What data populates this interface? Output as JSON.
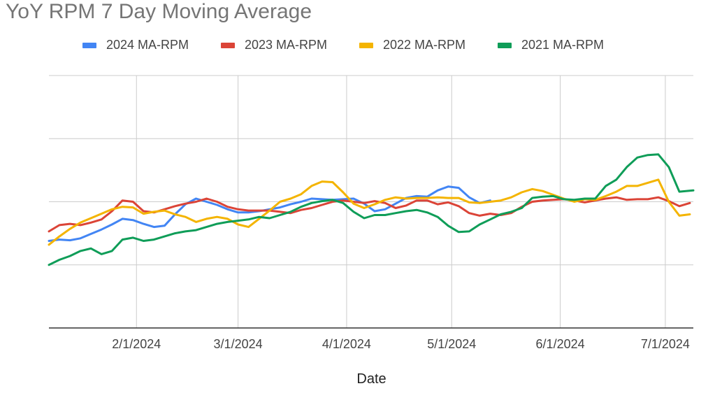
{
  "chart_data": {
    "type": "line",
    "title": "YoY RPM 7 Day Moving Average",
    "xlabel": "Date",
    "ylabel": "",
    "xlim": [
      "2024-01-07",
      "2024-07-09"
    ],
    "ylim": [
      0,
      4
    ],
    "yticks_labeled": false,
    "grid": true,
    "legend_position": "top",
    "x_ticks": [
      "2/1/2024",
      "3/1/2024",
      "4/1/2024",
      "5/1/2024",
      "6/1/2024",
      "7/1/2024"
    ],
    "series": [
      {
        "name": "2024 MA-RPM",
        "color": "#4285F4",
        "points": [
          [
            "2024-01-07",
            1.38
          ],
          [
            "2024-01-10",
            1.4
          ],
          [
            "2024-01-13",
            1.39
          ],
          [
            "2024-01-16",
            1.42
          ],
          [
            "2024-01-19",
            1.49
          ],
          [
            "2024-01-22",
            1.56
          ],
          [
            "2024-01-25",
            1.64
          ],
          [
            "2024-01-28",
            1.73
          ],
          [
            "2024-01-31",
            1.71
          ],
          [
            "2024-02-03",
            1.65
          ],
          [
            "2024-02-06",
            1.6
          ],
          [
            "2024-02-09",
            1.62
          ],
          [
            "2024-02-12",
            1.8
          ],
          [
            "2024-02-15",
            1.96
          ],
          [
            "2024-02-18",
            2.05
          ],
          [
            "2024-02-21",
            2.0
          ],
          [
            "2024-02-24",
            1.95
          ],
          [
            "2024-02-27",
            1.88
          ],
          [
            "2024-03-01",
            1.83
          ],
          [
            "2024-03-04",
            1.83
          ],
          [
            "2024-03-07",
            1.85
          ],
          [
            "2024-03-10",
            1.88
          ],
          [
            "2024-03-13",
            1.91
          ],
          [
            "2024-03-16",
            1.96
          ],
          [
            "2024-03-19",
            2.0
          ],
          [
            "2024-03-22",
            2.05
          ],
          [
            "2024-03-25",
            2.04
          ],
          [
            "2024-03-28",
            2.03
          ],
          [
            "2024-03-31",
            2.04
          ],
          [
            "2024-04-03",
            2.05
          ],
          [
            "2024-04-06",
            1.97
          ],
          [
            "2024-04-09",
            1.85
          ],
          [
            "2024-04-12",
            1.88
          ],
          [
            "2024-04-15",
            1.97
          ],
          [
            "2024-04-18",
            2.06
          ],
          [
            "2024-04-21",
            2.09
          ],
          [
            "2024-04-24",
            2.08
          ],
          [
            "2024-04-27",
            2.18
          ],
          [
            "2024-04-30",
            2.24
          ],
          [
            "2024-05-03",
            2.22
          ],
          [
            "2024-05-06",
            2.07
          ],
          [
            "2024-05-09",
            1.98
          ],
          [
            "2024-05-12",
            2.02
          ]
        ]
      },
      {
        "name": "2023 MA-RPM",
        "color": "#DB4437",
        "points": [
          [
            "2024-01-07",
            1.53
          ],
          [
            "2024-01-10",
            1.63
          ],
          [
            "2024-01-13",
            1.65
          ],
          [
            "2024-01-16",
            1.63
          ],
          [
            "2024-01-19",
            1.67
          ],
          [
            "2024-01-22",
            1.72
          ],
          [
            "2024-01-25",
            1.85
          ],
          [
            "2024-01-28",
            2.02
          ],
          [
            "2024-01-31",
            2.0
          ],
          [
            "2024-02-03",
            1.85
          ],
          [
            "2024-02-06",
            1.83
          ],
          [
            "2024-02-09",
            1.88
          ],
          [
            "2024-02-12",
            1.93
          ],
          [
            "2024-02-15",
            1.97
          ],
          [
            "2024-02-18",
            2.0
          ],
          [
            "2024-02-21",
            2.05
          ],
          [
            "2024-02-24",
            2.0
          ],
          [
            "2024-02-27",
            1.92
          ],
          [
            "2024-03-01",
            1.88
          ],
          [
            "2024-03-04",
            1.86
          ],
          [
            "2024-03-07",
            1.86
          ],
          [
            "2024-03-10",
            1.86
          ],
          [
            "2024-03-13",
            1.84
          ],
          [
            "2024-03-16",
            1.82
          ],
          [
            "2024-03-19",
            1.87
          ],
          [
            "2024-03-22",
            1.9
          ],
          [
            "2024-03-25",
            1.95
          ],
          [
            "2024-03-28",
            2.0
          ],
          [
            "2024-03-31",
            2.02
          ],
          [
            "2024-04-03",
            2.0
          ],
          [
            "2024-04-06",
            1.98
          ],
          [
            "2024-04-09",
            2.01
          ],
          [
            "2024-04-12",
            1.98
          ],
          [
            "2024-04-15",
            1.9
          ],
          [
            "2024-04-18",
            1.94
          ],
          [
            "2024-04-21",
            2.02
          ],
          [
            "2024-04-24",
            2.02
          ],
          [
            "2024-04-27",
            1.96
          ],
          [
            "2024-04-30",
            1.99
          ],
          [
            "2024-05-03",
            1.93
          ],
          [
            "2024-05-06",
            1.82
          ],
          [
            "2024-05-09",
            1.78
          ],
          [
            "2024-05-12",
            1.81
          ],
          [
            "2024-05-15",
            1.79
          ],
          [
            "2024-05-18",
            1.82
          ],
          [
            "2024-05-21",
            1.92
          ],
          [
            "2024-05-24",
            2.0
          ],
          [
            "2024-05-27",
            2.02
          ],
          [
            "2024-05-30",
            2.03
          ],
          [
            "2024-06-02",
            2.04
          ],
          [
            "2024-06-05",
            2.02
          ],
          [
            "2024-06-08",
            1.99
          ],
          [
            "2024-06-11",
            2.02
          ],
          [
            "2024-06-14",
            2.05
          ],
          [
            "2024-06-17",
            2.07
          ],
          [
            "2024-06-20",
            2.03
          ],
          [
            "2024-06-23",
            2.04
          ],
          [
            "2024-06-26",
            2.04
          ],
          [
            "2024-06-29",
            2.07
          ],
          [
            "2024-07-02",
            2.01
          ],
          [
            "2024-07-05",
            1.93
          ],
          [
            "2024-07-08",
            1.98
          ]
        ]
      },
      {
        "name": "2022 MA-RPM",
        "color": "#F4B400",
        "points": [
          [
            "2024-01-07",
            1.32
          ],
          [
            "2024-01-10",
            1.45
          ],
          [
            "2024-01-13",
            1.57
          ],
          [
            "2024-01-16",
            1.67
          ],
          [
            "2024-01-19",
            1.74
          ],
          [
            "2024-01-22",
            1.81
          ],
          [
            "2024-01-25",
            1.88
          ],
          [
            "2024-01-28",
            1.92
          ],
          [
            "2024-01-31",
            1.91
          ],
          [
            "2024-02-03",
            1.81
          ],
          [
            "2024-02-06",
            1.84
          ],
          [
            "2024-02-09",
            1.86
          ],
          [
            "2024-02-12",
            1.8
          ],
          [
            "2024-02-15",
            1.76
          ],
          [
            "2024-02-18",
            1.68
          ],
          [
            "2024-02-21",
            1.73
          ],
          [
            "2024-02-24",
            1.76
          ],
          [
            "2024-02-27",
            1.73
          ],
          [
            "2024-03-01",
            1.64
          ],
          [
            "2024-03-04",
            1.6
          ],
          [
            "2024-03-07",
            1.73
          ],
          [
            "2024-03-10",
            1.86
          ],
          [
            "2024-03-13",
            2.0
          ],
          [
            "2024-03-16",
            2.05
          ],
          [
            "2024-03-19",
            2.12
          ],
          [
            "2024-03-22",
            2.25
          ],
          [
            "2024-03-25",
            2.32
          ],
          [
            "2024-03-28",
            2.31
          ],
          [
            "2024-03-31",
            2.15
          ],
          [
            "2024-04-03",
            1.97
          ],
          [
            "2024-04-06",
            1.9
          ],
          [
            "2024-04-09",
            1.96
          ],
          [
            "2024-04-12",
            2.03
          ],
          [
            "2024-04-15",
            2.07
          ],
          [
            "2024-04-18",
            2.05
          ],
          [
            "2024-04-21",
            2.06
          ],
          [
            "2024-04-24",
            2.06
          ],
          [
            "2024-04-27",
            2.07
          ],
          [
            "2024-04-30",
            2.06
          ],
          [
            "2024-05-03",
            2.06
          ],
          [
            "2024-05-06",
            1.99
          ],
          [
            "2024-05-09",
            1.98
          ],
          [
            "2024-05-12",
            2.0
          ],
          [
            "2024-05-15",
            2.02
          ],
          [
            "2024-05-18",
            2.07
          ],
          [
            "2024-05-21",
            2.15
          ],
          [
            "2024-05-24",
            2.2
          ],
          [
            "2024-05-27",
            2.17
          ],
          [
            "2024-05-30",
            2.11
          ],
          [
            "2024-06-02",
            2.05
          ],
          [
            "2024-06-05",
            2.0
          ],
          [
            "2024-06-08",
            2.04
          ],
          [
            "2024-06-11",
            2.03
          ],
          [
            "2024-06-14",
            2.09
          ],
          [
            "2024-06-17",
            2.16
          ],
          [
            "2024-06-20",
            2.25
          ],
          [
            "2024-06-23",
            2.25
          ],
          [
            "2024-06-26",
            2.3
          ],
          [
            "2024-06-29",
            2.35
          ],
          [
            "2024-07-02",
            2.0
          ],
          [
            "2024-07-05",
            1.78
          ],
          [
            "2024-07-08",
            1.8
          ]
        ]
      },
      {
        "name": "2021 MA-RPM",
        "color": "#0F9D58",
        "points": [
          [
            "2024-01-07",
            1.0
          ],
          [
            "2024-01-10",
            1.08
          ],
          [
            "2024-01-13",
            1.14
          ],
          [
            "2024-01-16",
            1.22
          ],
          [
            "2024-01-19",
            1.26
          ],
          [
            "2024-01-22",
            1.17
          ],
          [
            "2024-01-25",
            1.22
          ],
          [
            "2024-01-28",
            1.4
          ],
          [
            "2024-01-31",
            1.43
          ],
          [
            "2024-02-03",
            1.38
          ],
          [
            "2024-02-06",
            1.4
          ],
          [
            "2024-02-09",
            1.45
          ],
          [
            "2024-02-12",
            1.5
          ],
          [
            "2024-02-15",
            1.53
          ],
          [
            "2024-02-18",
            1.55
          ],
          [
            "2024-02-21",
            1.6
          ],
          [
            "2024-02-24",
            1.65
          ],
          [
            "2024-02-27",
            1.68
          ],
          [
            "2024-03-01",
            1.7
          ],
          [
            "2024-03-04",
            1.72
          ],
          [
            "2024-03-07",
            1.76
          ],
          [
            "2024-03-10",
            1.74
          ],
          [
            "2024-03-13",
            1.79
          ],
          [
            "2024-03-16",
            1.84
          ],
          [
            "2024-03-19",
            1.92
          ],
          [
            "2024-03-22",
            1.98
          ],
          [
            "2024-03-25",
            2.01
          ],
          [
            "2024-03-28",
            2.03
          ],
          [
            "2024-03-31",
            1.98
          ],
          [
            "2024-04-03",
            1.84
          ],
          [
            "2024-04-06",
            1.74
          ],
          [
            "2024-04-09",
            1.79
          ],
          [
            "2024-04-12",
            1.79
          ],
          [
            "2024-04-15",
            1.82
          ],
          [
            "2024-04-18",
            1.85
          ],
          [
            "2024-04-21",
            1.87
          ],
          [
            "2024-04-24",
            1.83
          ],
          [
            "2024-04-27",
            1.76
          ],
          [
            "2024-04-30",
            1.62
          ],
          [
            "2024-05-03",
            1.52
          ],
          [
            "2024-05-06",
            1.53
          ],
          [
            "2024-05-09",
            1.64
          ],
          [
            "2024-05-12",
            1.72
          ],
          [
            "2024-05-15",
            1.8
          ],
          [
            "2024-05-18",
            1.84
          ],
          [
            "2024-05-21",
            1.9
          ],
          [
            "2024-05-24",
            2.06
          ],
          [
            "2024-05-27",
            2.08
          ],
          [
            "2024-05-30",
            2.09
          ],
          [
            "2024-06-02",
            2.04
          ],
          [
            "2024-06-05",
            2.03
          ],
          [
            "2024-06-08",
            2.05
          ],
          [
            "2024-06-11",
            2.05
          ],
          [
            "2024-06-14",
            2.25
          ],
          [
            "2024-06-17",
            2.35
          ],
          [
            "2024-06-20",
            2.55
          ],
          [
            "2024-06-23",
            2.7
          ],
          [
            "2024-06-26",
            2.74
          ],
          [
            "2024-06-29",
            2.75
          ],
          [
            "2024-07-02",
            2.55
          ],
          [
            "2024-07-05",
            2.16
          ],
          [
            "2024-07-09",
            2.18
          ]
        ]
      }
    ]
  }
}
